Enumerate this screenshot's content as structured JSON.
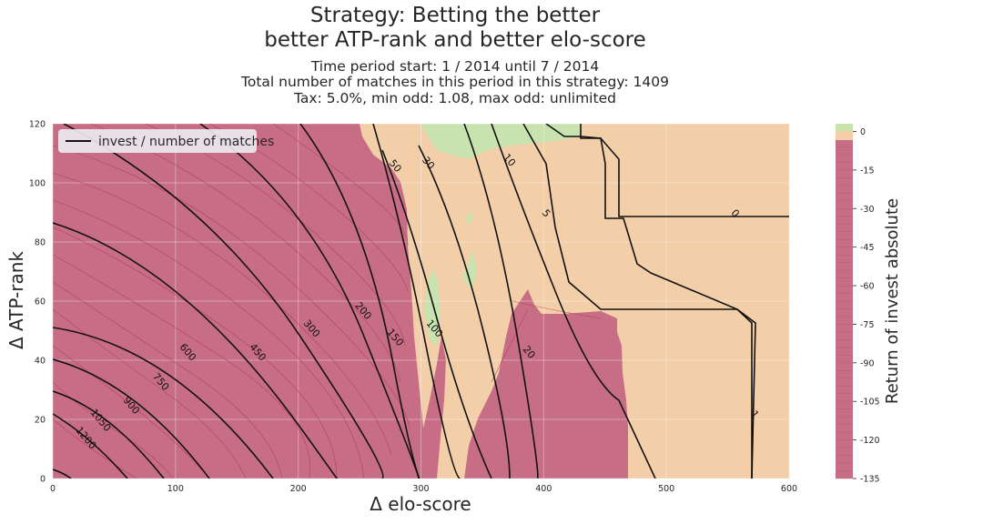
{
  "chart_data": {
    "type": "contour",
    "title": [
      "Strategy: Betting the better",
      "better ATP-rank and better elo-score"
    ],
    "subtitle": [
      "Time period start: 1 / 2014 until 7 / 2014",
      "Total number of matches in this period in this strategy: 1409",
      "Tax: 5.0%, min odd: 1.08, max odd: unlimited"
    ],
    "xlabel": "Δ elo-score",
    "ylabel": "Δ ATP-rank",
    "xlim": [
      0,
      600
    ],
    "ylim": [
      0,
      120
    ],
    "xticks": [
      0,
      100,
      200,
      300,
      400,
      500,
      600
    ],
    "yticks": [
      0,
      20,
      40,
      60,
      80,
      100,
      120
    ],
    "grid": true,
    "legend": {
      "label": "invest / number of matches",
      "placement": "top-left"
    },
    "colorbar": {
      "label": "Return of invest absolute",
      "ticks": [
        0,
        -15,
        -30,
        -45,
        -60,
        -75,
        -90,
        -105,
        -120,
        -135
      ],
      "range": [
        -135,
        3
      ],
      "colors": {
        "negative": "#c76e86",
        "near_zero": "#f3cfa9",
        "positive": "#c8e2b0"
      }
    },
    "contour_lines": [
      {
        "level": 1200,
        "label_at": [
          25,
          13
        ]
      },
      {
        "level": 1050,
        "label_at": [
          37,
          19
        ]
      },
      {
        "level": 900,
        "label_at": [
          62,
          24
        ]
      },
      {
        "level": 750,
        "label_at": [
          86,
          32
        ]
      },
      {
        "level": 600,
        "label_at": [
          108,
          42
        ]
      },
      {
        "level": 450,
        "label_at": [
          165,
          42
        ]
      },
      {
        "level": 300,
        "label_at": [
          209,
          50
        ]
      },
      {
        "level": 200,
        "label_at": [
          251,
          56
        ]
      },
      {
        "level": 150,
        "label_at": [
          277,
          47
        ]
      },
      {
        "level": 100,
        "label_at": [
          309,
          50
        ]
      },
      {
        "level": 50,
        "label_at": [
          277,
          105
        ]
      },
      {
        "level": 30,
        "label_at": [
          304,
          106
        ]
      },
      {
        "level": 20,
        "label_at": [
          386,
          42
        ]
      },
      {
        "level": 10,
        "label_at": [
          370,
          107
        ]
      },
      {
        "level": 5,
        "label_at": [
          400,
          89
        ]
      },
      {
        "level": 1,
        "label_at": [
          570,
          21
        ]
      },
      {
        "level": 0,
        "label_at": [
          554,
          89
        ]
      }
    ]
  }
}
